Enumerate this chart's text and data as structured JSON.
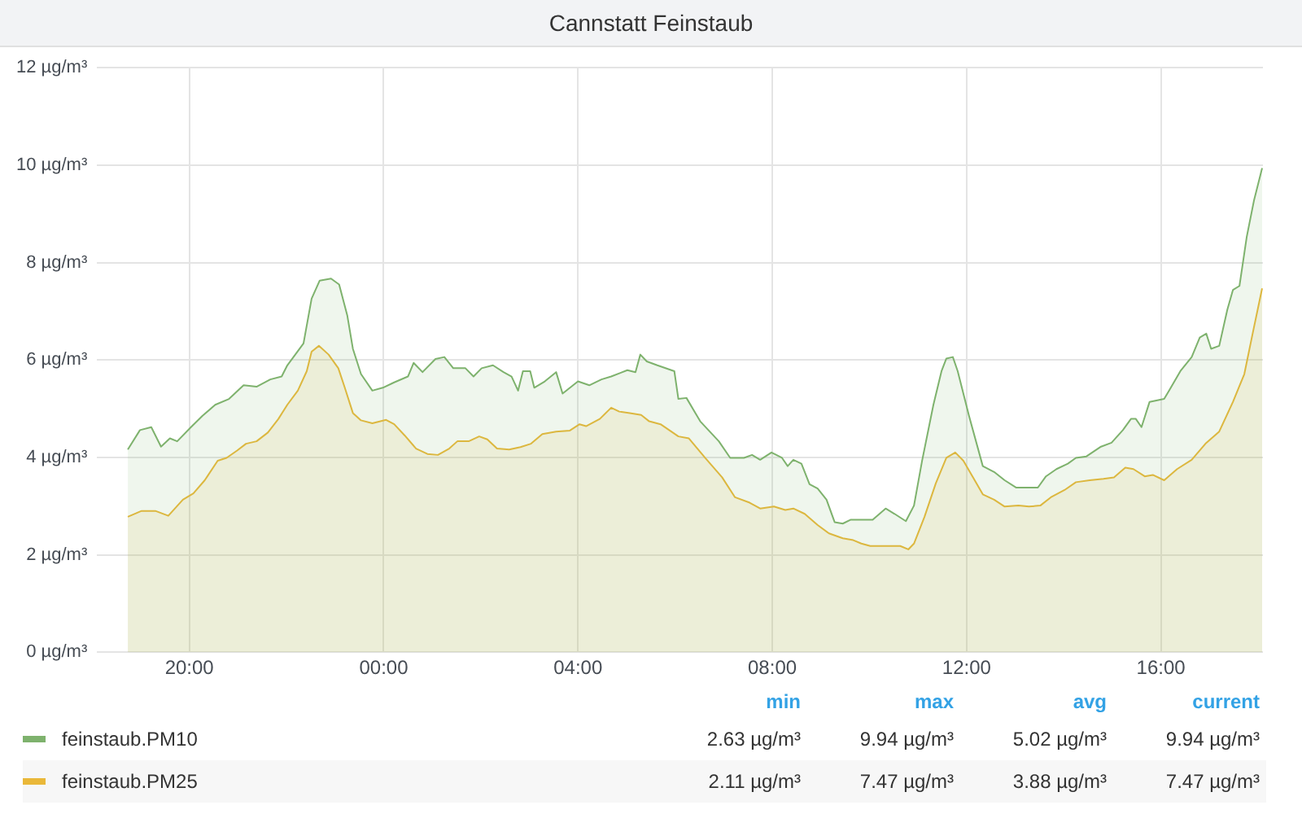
{
  "chart_data": {
    "type": "area",
    "title": "Cannstatt Feinstaub",
    "xlim": [
      "--01-01T18:06",
      "--01-02T18:06"
    ],
    "xticks": [
      {
        "value": "--01-01T20:00",
        "label": "20:00"
      },
      {
        "value": "--01-02T00:00",
        "label": "00:00"
      },
      {
        "value": "--01-02T04:00",
        "label": "04:00"
      },
      {
        "value": "--01-02T08:00",
        "label": "08:00"
      },
      {
        "value": "--01-02T12:00",
        "label": "12:00"
      },
      {
        "value": "--01-02T16:00",
        "label": "16:00"
      }
    ],
    "ylim": [
      0,
      12
    ],
    "yticks": [
      {
        "value": 0,
        "label": "0 µg/m³"
      },
      {
        "value": 2,
        "label": "2 µg/m³"
      },
      {
        "value": 4,
        "label": "4 µg/m³"
      },
      {
        "value": 6,
        "label": "6 µg/m³"
      },
      {
        "value": 8,
        "label": "8 µg/m³"
      },
      {
        "value": 10,
        "label": "10 µg/m³"
      },
      {
        "value": 12,
        "label": "12 µg/m³"
      }
    ],
    "grid": true,
    "legend": "bottom",
    "marker": "none",
    "annotations": [
      "min",
      "max",
      "avg",
      "current",
      "2.63 µg/m³",
      "9.94 µg/m³",
      "5.02 µg/m³",
      "9.94 µg/m³",
      "2.11 µg/m³",
      "7.47 µg/m³",
      "3.88 µg/m³",
      "7.47 µg/m³"
    ],
    "series": [
      {
        "name": "feinstaub.PM10",
        "color": "#7eb26d",
        "x": [
          "--01-01T18:44",
          "--01-01T18:59",
          "--01-01T19:13",
          "--01-01T19:25",
          "--01-01T19:36",
          "--01-01T19:45",
          "--01-01T20:02",
          "--01-01T20:16",
          "--01-01T20:32",
          "--01-01T20:49",
          "--01-01T21:07",
          "--01-01T21:23",
          "--01-01T21:40",
          "--01-01T21:54",
          "--01-01T22:01",
          "--01-01T22:21",
          "--01-01T22:31",
          "--01-01T22:41",
          "--01-01T22:55",
          "--01-01T23:05",
          "--01-01T23:15",
          "--01-01T23:22",
          "--01-01T23:32",
          "--01-01T23:46",
          "--01-01T23:59",
          "--01-02T00:13",
          "--01-02T00:30",
          "--01-02T00:37",
          "--01-02T00:48",
          "--01-02T01:04",
          "--01-02T01:15",
          "--01-02T01:26",
          "--01-02T01:41",
          "--01-02T01:51",
          "--01-02T02:01",
          "--01-02T02:15",
          "--01-02T02:28",
          "--01-02T02:38",
          "--01-02T02:46",
          "--01-02T02:52",
          "--01-02T03:01",
          "--01-02T03:06",
          "--01-02T03:19",
          "--01-02T03:33",
          "--01-02T03:41",
          "--01-02T04:00",
          "--01-02T04:14",
          "--01-02T04:29",
          "--01-02T04:41",
          "--01-02T05:01",
          "--01-02T05:11",
          "--01-02T05:17",
          "--01-02T05:25",
          "--01-02T05:38",
          "--01-02T05:59",
          "--01-02T06:04",
          "--01-02T06:14",
          "--01-02T06:31",
          "--01-02T06:54",
          "--01-02T07:08",
          "--01-02T07:25",
          "--01-02T07:35",
          "--01-02T07:45",
          "--01-02T07:59",
          "--01-02T08:12",
          "--01-02T08:19",
          "--01-02T08:26",
          "--01-02T08:36",
          "--01-02T08:46",
          "--01-02T08:56",
          "--01-02T09:07",
          "--01-02T09:17",
          "--01-02T09:27",
          "--01-02T09:37",
          "--01-02T09:50",
          "--01-02T10:04",
          "--01-02T10:20",
          "--01-02T10:31",
          "--01-02T10:45",
          "--01-02T10:55",
          "--01-02T11:05",
          "--01-02T11:19",
          "--01-02T11:29",
          "--01-02T11:35",
          "--01-02T11:43",
          "--01-02T11:49",
          "--01-02T12:03",
          "--01-02T12:20",
          "--01-02T12:34",
          "--01-02T12:47",
          "--01-02T13:01",
          "--01-02T13:17",
          "--01-02T13:28",
          "--01-02T13:38",
          "--01-02T13:51",
          "--01-02T14:05",
          "--01-02T14:15",
          "--01-02T14:28",
          "--01-02T14:46",
          "--01-02T14:59",
          "--01-02T15:13",
          "--01-02T15:23",
          "--01-02T15:29",
          "--01-02T15:36",
          "--01-02T15:46",
          "--01-02T16:04",
          "--01-02T16:10",
          "--01-02T16:24",
          "--01-02T16:38",
          "--01-02T16:48",
          "--01-02T16:56",
          "--01-02T17:02",
          "--01-02T17:12",
          "--01-02T17:22",
          "--01-02T17:29",
          "--01-02T17:37",
          "--01-02T17:46",
          "--01-02T17:55",
          "--01-02T18:05"
        ],
        "values": [
          4.16,
          4.56,
          4.62,
          4.22,
          4.39,
          4.33,
          4.62,
          4.85,
          5.08,
          5.2,
          5.48,
          5.45,
          5.6,
          5.66,
          5.89,
          6.34,
          7.26,
          7.63,
          7.67,
          7.55,
          6.92,
          6.23,
          5.71,
          5.37,
          5.43,
          5.54,
          5.66,
          5.94,
          5.75,
          6.02,
          6.06,
          5.83,
          5.83,
          5.66,
          5.83,
          5.89,
          5.75,
          5.66,
          5.37,
          5.77,
          5.77,
          5.43,
          5.56,
          5.75,
          5.31,
          5.56,
          5.48,
          5.6,
          5.66,
          5.79,
          5.75,
          6.11,
          5.97,
          5.89,
          5.77,
          5.2,
          5.22,
          4.74,
          4.33,
          3.99,
          3.99,
          4.05,
          3.95,
          4.1,
          3.99,
          3.82,
          3.95,
          3.87,
          3.45,
          3.36,
          3.13,
          2.67,
          2.64,
          2.72,
          2.72,
          2.72,
          2.95,
          2.84,
          2.69,
          3.01,
          3.93,
          5.08,
          5.77,
          6.03,
          6.06,
          5.77,
          4.85,
          3.82,
          3.7,
          3.53,
          3.38,
          3.38,
          3.38,
          3.61,
          3.76,
          3.87,
          3.99,
          4.02,
          4.22,
          4.3,
          4.56,
          4.79,
          4.79,
          4.62,
          5.14,
          5.2,
          5.37,
          5.77,
          6.06,
          6.46,
          6.54,
          6.23,
          6.29,
          7.03,
          7.44,
          7.52,
          8.53,
          9.28,
          9.94
        ]
      },
      {
        "name": "feinstaub.PM25",
        "color": "#eab839",
        "x": [
          "--01-01T18:44",
          "--01-01T19:01",
          "--01-01T19:18",
          "--01-01T19:34",
          "--01-01T19:52",
          "--01-01T20:05",
          "--01-01T20:19",
          "--01-01T20:35",
          "--01-01T20:46",
          "--01-01T20:59",
          "--01-01T21:10",
          "--01-01T21:23",
          "--01-01T21:37",
          "--01-01T21:50",
          "--01-01T22:01",
          "--01-01T22:14",
          "--01-01T22:25",
          "--01-01T22:31",
          "--01-01T22:40",
          "--01-01T22:52",
          "--01-01T23:04",
          "--01-01T23:12",
          "--01-01T23:22",
          "--01-01T23:32",
          "--01-01T23:46",
          "--01-02T00:03",
          "--01-02T00:13",
          "--01-02T00:26",
          "--01-02T00:40",
          "--01-02T00:54",
          "--01-02T01:07",
          "--01-02T01:21",
          "--01-02T01:31",
          "--01-02T01:45",
          "--01-02T01:58",
          "--01-02T02:08",
          "--01-02T02:20",
          "--01-02T02:35",
          "--01-02T02:49",
          "--01-02T03:02",
          "--01-02T03:16",
          "--01-02T03:33",
          "--01-02T03:50",
          "--01-02T04:02",
          "--01-02T04:10",
          "--01-02T04:27",
          "--01-02T04:41",
          "--01-02T04:51",
          "--01-02T05:04",
          "--01-02T05:18",
          "--01-02T05:28",
          "--01-02T05:42",
          "--01-02T06:04",
          "--01-02T06:17",
          "--01-02T06:37",
          "--01-02T06:58",
          "--01-02T07:14",
          "--01-02T07:32",
          "--01-02T07:45",
          "--01-02T08:02",
          "--01-02T08:16",
          "--01-02T08:26",
          "--01-02T08:40",
          "--01-02T08:56",
          "--01-02T09:10",
          "--01-02T09:27",
          "--01-02T09:40",
          "--01-02T09:50",
          "--01-02T10:01",
          "--01-02T10:21",
          "--01-02T10:38",
          "--01-02T10:48",
          "--01-02T10:55",
          "--01-02T11:08",
          "--01-02T11:22",
          "--01-02T11:35",
          "--01-02T11:46",
          "--01-02T11:56",
          "--01-02T12:10",
          "--01-02T12:20",
          "--01-02T12:34",
          "--01-02T12:47",
          "--01-02T13:04",
          "--01-02T13:17",
          "--01-02T13:31",
          "--01-02T13:44",
          "--01-02T14:01",
          "--01-02T14:15",
          "--01-02T14:32",
          "--01-02T14:49",
          "--01-02T15:02",
          "--01-02T15:16",
          "--01-02T15:26",
          "--01-02T15:40",
          "--01-02T15:50",
          "--01-02T16:04",
          "--01-02T16:20",
          "--01-02T16:38",
          "--01-02T16:55",
          "--01-02T17:12",
          "--01-02T17:29",
          "--01-02T17:43",
          "--01-02T17:53",
          "--01-02T18:05"
        ],
        "values": [
          2.78,
          2.9,
          2.9,
          2.8,
          3.13,
          3.26,
          3.53,
          3.93,
          3.99,
          4.14,
          4.28,
          4.33,
          4.51,
          4.79,
          5.08,
          5.37,
          5.77,
          6.17,
          6.29,
          6.11,
          5.83,
          5.43,
          4.91,
          4.76,
          4.7,
          4.77,
          4.68,
          4.45,
          4.18,
          4.07,
          4.05,
          4.18,
          4.33,
          4.33,
          4.43,
          4.37,
          4.18,
          4.16,
          4.21,
          4.28,
          4.48,
          4.53,
          4.55,
          4.68,
          4.64,
          4.79,
          5.02,
          4.94,
          4.91,
          4.87,
          4.74,
          4.68,
          4.43,
          4.39,
          3.99,
          3.59,
          3.18,
          3.07,
          2.95,
          2.99,
          2.92,
          2.95,
          2.84,
          2.61,
          2.44,
          2.34,
          2.3,
          2.23,
          2.18,
          2.18,
          2.18,
          2.11,
          2.23,
          2.78,
          3.47,
          3.99,
          4.1,
          3.93,
          3.53,
          3.24,
          3.13,
          2.99,
          3.01,
          2.99,
          3.01,
          3.18,
          3.33,
          3.49,
          3.53,
          3.56,
          3.59,
          3.79,
          3.76,
          3.61,
          3.64,
          3.53,
          3.76,
          3.95,
          4.28,
          4.53,
          5.14,
          5.71,
          6.52,
          7.47
        ]
      }
    ]
  }
}
